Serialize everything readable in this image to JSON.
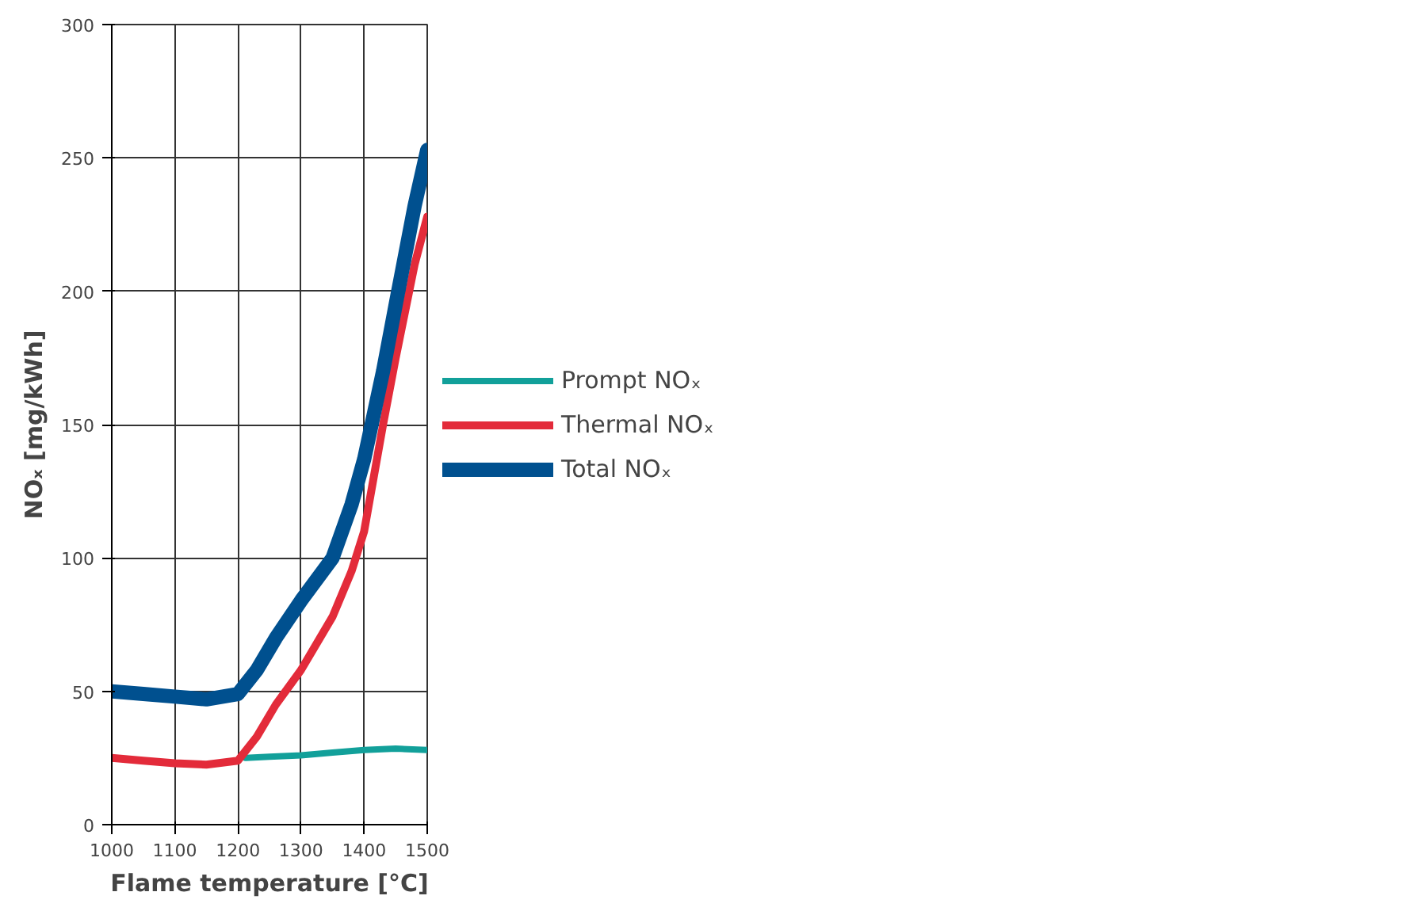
{
  "chart_data": {
    "type": "line",
    "xlabel": "Flame temperature [°C]",
    "ylabel": "NOₓ [mg/kWh]",
    "xlim": [
      1000,
      1500
    ],
    "xticks": [
      1000,
      1100,
      1200,
      1300,
      1400,
      1500
    ],
    "ylim": [
      0,
      300
    ],
    "yticks": [
      0,
      50,
      100,
      150,
      200,
      250,
      300
    ],
    "grid": true,
    "legend": "right",
    "marker": "none",
    "line_style": "solid",
    "series": [
      {
        "name": "Prompt NOₓ",
        "color": "#12a09a",
        "x": [
          1212,
          1250,
          1300,
          1350,
          1400,
          1450,
          1500
        ],
        "values": [
          25,
          25.5,
          26,
          27,
          28,
          28.5,
          28
        ]
      },
      {
        "name": "Thermal NOₓ",
        "color": "#e32b3a",
        "x": [
          1000,
          1050,
          1100,
          1150,
          1200,
          1230,
          1260,
          1300,
          1350,
          1380,
          1400,
          1430,
          1450,
          1480,
          1500
        ],
        "values": [
          25,
          24,
          23,
          22.5,
          24,
          33,
          45,
          58,
          78,
          95,
          110,
          150,
          175,
          210,
          228
        ]
      },
      {
        "name": "Total NOₓ",
        "color": "#00508f",
        "x": [
          1000,
          1050,
          1100,
          1150,
          1200,
          1230,
          1260,
          1300,
          1350,
          1380,
          1400,
          1430,
          1450,
          1480,
          1500
        ],
        "values": [
          50,
          49,
          48,
          47,
          49,
          58,
          70,
          84,
          100,
          120,
          137,
          170,
          195,
          232,
          253
        ]
      }
    ]
  }
}
